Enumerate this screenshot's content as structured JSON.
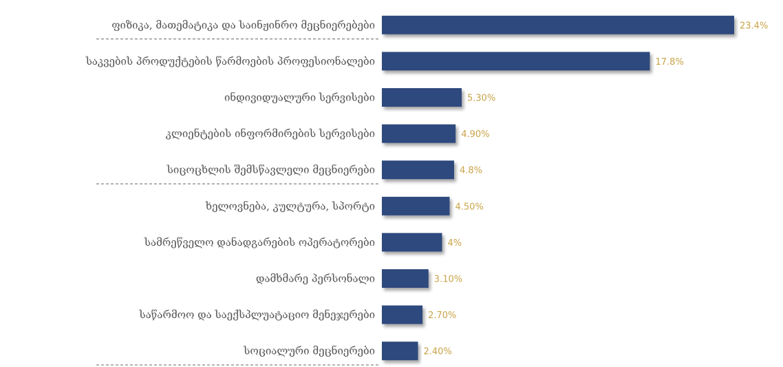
{
  "chart_data": {
    "type": "bar",
    "orientation": "horizontal",
    "categories": [
      "ფიზიკა, მათემატიკა და საინჟინრო მეცნიერებები",
      "საკვების პროდუქტების წარმოების პროფესიონალები",
      "ინდივიდუალური სერვისები",
      "კლიენტების ინფორმირების სერვისები",
      "სიცოცხლის შემსწავლელი მეცნიერები",
      "ხელოვნება, კულტურა, სპორტი",
      "სამრეწველო დანადგარების ოპერატორები",
      "დამხმარე პერსონალი",
      "საწარმოო და საექსპლუატაციო მენეჯერები",
      "სოციალური მეცნიერები"
    ],
    "values": [
      23.4,
      17.8,
      5.3,
      4.9,
      4.8,
      4.5,
      4.0,
      3.1,
      2.7,
      2.4
    ],
    "value_labels": [
      "23.4%",
      "17.8%",
      "5.30%",
      "4.90%",
      "4.8%",
      "4.50%",
      "4%",
      "3.10%",
      "2.70%",
      "2.40%"
    ],
    "xlim": [
      0,
      23.4
    ],
    "grid": false,
    "legend": "none",
    "colors": {
      "bar": "#2e4a7d",
      "value_label": "#c9a449",
      "category_label": "#555555"
    },
    "separators_after": [
      0,
      4,
      9
    ]
  }
}
